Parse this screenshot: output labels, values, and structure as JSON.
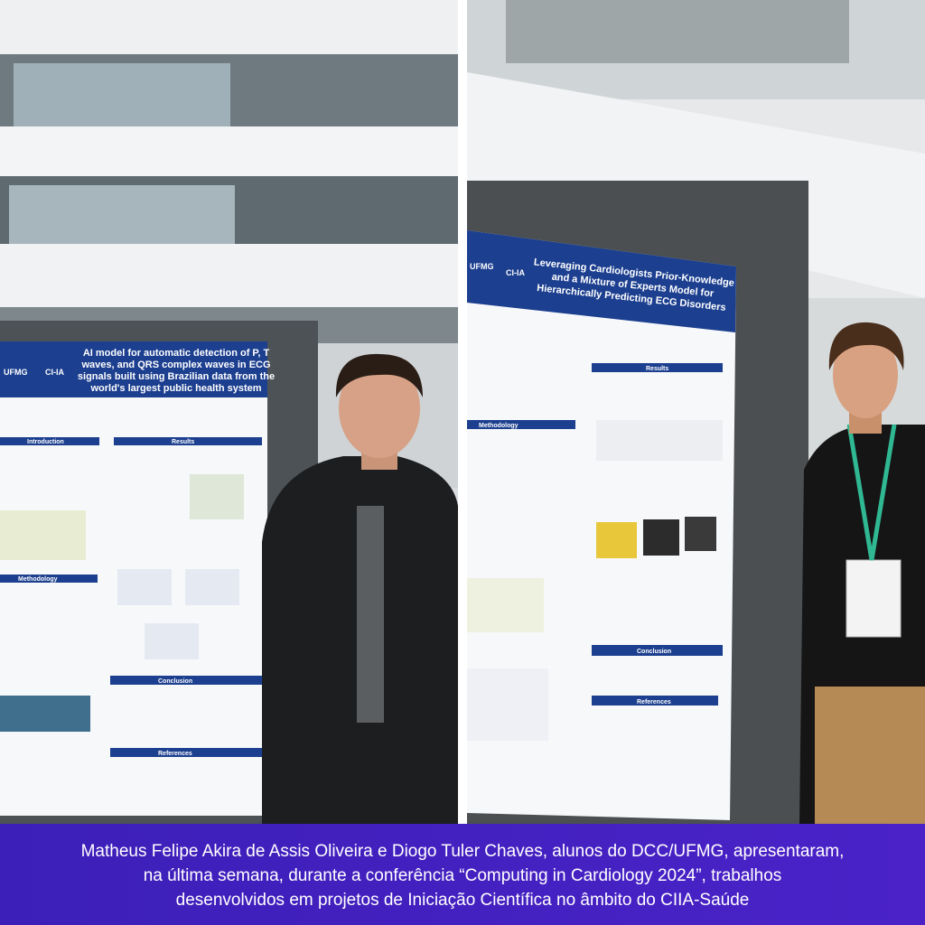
{
  "photos": {
    "left": {
      "poster": {
        "logos": [
          "UFMG",
          "CI-IA"
        ],
        "title": [
          "AI model for automatic detection of P, T",
          "waves, and QRS complex waves in ECG",
          "signals built using Brazilian data from the",
          "world's largest public health system"
        ],
        "sections": [
          "Introduction",
          "Results",
          "Methodology",
          "Conclusion",
          "References"
        ]
      }
    },
    "right": {
      "poster": {
        "logos": [
          "UFMG",
          "CI-IA"
        ],
        "title": [
          "Leveraging Cardiologists Prior-Knowledge",
          "and a Mixture of Experts Model for",
          "Hierarchically Predicting ECG Disorders"
        ],
        "sections": [
          "Results",
          "Methodology",
          "Conclusion",
          "References"
        ]
      }
    }
  },
  "caption": {
    "lines": [
      "Matheus Felipe Akira de Assis Oliveira e Diogo Tuler Chaves, alunos do DCC/UFMG, apresentaram,",
      "na última semana, durante a conferência “Computing in Cardiology 2024”,  trabalhos",
      "desenvolvidos em projetos de Iniciação Científica no âmbito do CIIA-Saúde"
    ]
  }
}
